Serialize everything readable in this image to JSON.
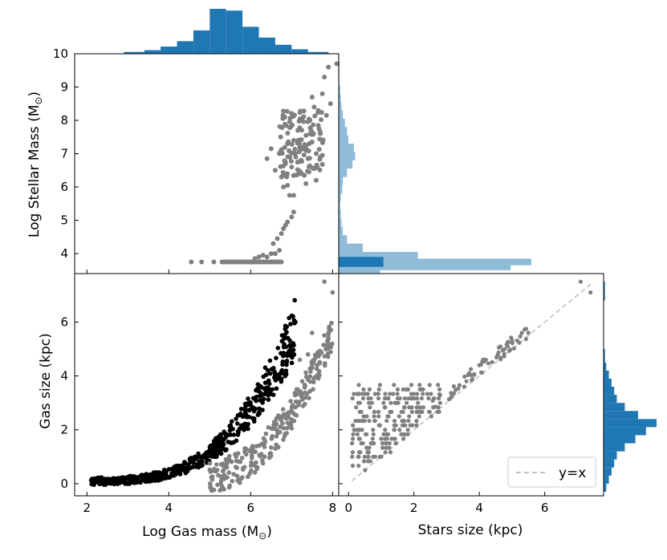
{
  "chart_data": [
    {
      "panel": "top-left",
      "type": "scatter",
      "xlabel": "",
      "ylabel": "Log Stellar Mass (M",
      "ylabel_sub": "⊙",
      "ylabel_close": ")",
      "xlim": [
        1.7,
        8.15
      ],
      "ylim": [
        3.4,
        10
      ],
      "yticks": [
        4,
        5,
        6,
        7,
        8,
        9,
        10
      ],
      "xticks": [
        2,
        4,
        6,
        8
      ],
      "show_x_ticklabels": false,
      "marker_color": "#808080",
      "series": [
        {
          "low_cluster_x": [
            4.55,
            4.8,
            5.1,
            5.35,
            5.5,
            5.6,
            5.7,
            5.8,
            5.9,
            6.0,
            6.1,
            6.2,
            6.3,
            6.4,
            6.5,
            6.6,
            6.7
          ],
          "low_cluster_y": 3.75,
          "rising_branch": [
            [
              6.1,
              3.85
            ],
            [
              6.2,
              3.9
            ],
            [
              6.3,
              3.95
            ],
            [
              6.4,
              3.9
            ],
            [
              6.5,
              4.0
            ],
            [
              6.6,
              4.0
            ],
            [
              6.7,
              4.1
            ],
            [
              6.55,
              4.3
            ],
            [
              6.65,
              4.45
            ],
            [
              6.75,
              4.6
            ],
            [
              6.8,
              4.75
            ],
            [
              6.85,
              4.85
            ],
            [
              6.9,
              4.95
            ],
            [
              7.0,
              5.1
            ],
            [
              7.05,
              5.25
            ]
          ],
          "upper_cluster": [
            [
              6.4,
              6.85
            ],
            [
              6.5,
              7.15
            ],
            [
              6.6,
              6.5
            ],
            [
              6.7,
              7.0
            ],
            [
              6.75,
              6.3
            ],
            [
              6.8,
              6.0
            ],
            [
              6.85,
              6.7
            ],
            [
              6.9,
              7.3
            ],
            [
              6.95,
              5.75
            ],
            [
              7.0,
              6.6
            ],
            [
              7.05,
              7.4
            ],
            [
              7.1,
              6.9
            ],
            [
              7.15,
              7.7
            ],
            [
              7.2,
              6.4
            ],
            [
              7.25,
              8.05
            ],
            [
              7.3,
              7.2
            ],
            [
              7.35,
              7.55
            ],
            [
              7.4,
              6.85
            ],
            [
              7.45,
              8.0
            ],
            [
              7.5,
              7.35
            ],
            [
              7.55,
              8.4
            ],
            [
              7.6,
              7.0
            ],
            [
              7.65,
              7.85
            ],
            [
              7.7,
              7.6
            ],
            [
              7.75,
              8.8
            ],
            [
              7.8,
              9.3
            ],
            [
              7.9,
              9.6
            ],
            [
              8.1,
              9.7
            ],
            [
              6.9,
              6.05
            ],
            [
              7.05,
              5.75
            ],
            [
              7.35,
              6.1
            ],
            [
              7.55,
              6.55
            ],
            [
              7.6,
              6.2
            ],
            [
              7.7,
              6.9
            ],
            [
              7.5,
              8.7
            ],
            [
              7.65,
              8.3
            ],
            [
              7.85,
              8.15
            ],
            [
              7.95,
              8.5
            ]
          ]
        }
      ]
    },
    {
      "panel": "top-right",
      "type": "bar",
      "orientation": "horizontal",
      "xlabel": "",
      "ylabel": "",
      "histogram_a_alpha": "light",
      "color": "#1f77b4",
      "bins_light": [
        [
          3.4,
          3.5,
          60
        ],
        [
          3.5,
          3.65,
          250
        ],
        [
          3.65,
          3.85,
          280
        ],
        [
          3.85,
          4.05,
          115
        ],
        [
          4.05,
          4.3,
          35
        ],
        [
          4.3,
          4.55,
          12
        ],
        [
          4.55,
          4.8,
          6
        ],
        [
          4.8,
          5.05,
          4
        ],
        [
          5.05,
          5.3,
          3
        ],
        [
          5.3,
          5.55,
          2
        ],
        [
          5.55,
          5.8,
          3
        ],
        [
          5.8,
          6.05,
          5
        ],
        [
          6.05,
          6.3,
          6
        ],
        [
          6.3,
          6.55,
          12
        ],
        [
          6.55,
          6.8,
          20
        ],
        [
          6.8,
          7.05,
          24
        ],
        [
          7.05,
          7.3,
          22
        ],
        [
          7.3,
          7.55,
          14
        ],
        [
          7.55,
          7.8,
          12
        ],
        [
          7.8,
          8.05,
          9
        ],
        [
          8.05,
          8.3,
          6
        ],
        [
          8.3,
          8.55,
          4
        ],
        [
          8.55,
          8.8,
          3
        ],
        [
          8.8,
          9.05,
          2
        ],
        [
          9.05,
          9.3,
          1
        ],
        [
          9.3,
          9.55,
          1
        ],
        [
          9.55,
          9.8,
          1
        ]
      ],
      "bins_dark": [
        [
          3.6,
          3.9,
          65
        ]
      ]
    },
    {
      "panel": "top",
      "type": "bar",
      "orientation": "vertical",
      "xlabel": "",
      "ylabel": "",
      "color": "#1f77b4",
      "bins": [
        [
          2.9,
          3.4,
          2
        ],
        [
          3.4,
          3.8,
          4
        ],
        [
          3.8,
          4.2,
          8
        ],
        [
          4.2,
          4.6,
          14
        ],
        [
          4.6,
          5.0,
          26
        ],
        [
          5.0,
          5.4,
          50
        ],
        [
          5.4,
          5.8,
          48
        ],
        [
          5.8,
          6.2,
          30
        ],
        [
          6.2,
          6.6,
          18
        ],
        [
          6.6,
          7.0,
          10
        ],
        [
          7.0,
          7.4,
          5
        ],
        [
          7.4,
          7.9,
          2
        ]
      ]
    },
    {
      "panel": "bottom-left",
      "type": "scatter",
      "xlabel": "Log Gas mass (M",
      "xlabel_sub": "⊙",
      "xlabel_close": ")",
      "ylabel": "Gas size (kpc)",
      "xlim": [
        1.7,
        8.15
      ],
      "ylim": [
        -0.45,
        7.8
      ],
      "xticks": [
        2,
        4,
        6,
        8
      ],
      "yticks": [
        0,
        2,
        4,
        6
      ],
      "series": [
        {
          "name": "",
          "color": "#000000",
          "note": "dense black relation ranging from (2.1, 0.1) to (7.0, 5.5)"
        },
        {
          "name": "",
          "color": "#808080",
          "note": "grey relation ranging from (5.0, 0.3) to (8.0, 7.5)"
        }
      ]
    },
    {
      "panel": "bottom-right",
      "type": "scatter",
      "xlabel": "Stars size (kpc)",
      "ylabel": "",
      "xlim": [
        -0.3,
        7.8
      ],
      "ylim": [
        -0.45,
        7.8
      ],
      "xticks": [
        0,
        2,
        4,
        6
      ],
      "yticks": [
        0,
        2,
        4,
        6
      ],
      "show_y_ticklabels": false,
      "marker_color": "#808080",
      "line": {
        "label": "y=x",
        "style": "dashed",
        "color": "#c0c0c0"
      },
      "legend": "bottom-right"
    },
    {
      "panel": "right",
      "type": "bar",
      "orientation": "horizontal",
      "xlabel": "",
      "ylabel": "",
      "color": "#1f77b4",
      "bins": [
        [
          -0.3,
          0.0,
          1
        ],
        [
          0.0,
          0.3,
          2
        ],
        [
          0.3,
          0.6,
          3
        ],
        [
          0.6,
          0.9,
          4
        ],
        [
          0.9,
          1.2,
          5
        ],
        [
          1.2,
          1.5,
          8
        ],
        [
          1.5,
          1.8,
          12
        ],
        [
          1.8,
          2.1,
          16
        ],
        [
          2.1,
          2.4,
          20
        ],
        [
          2.4,
          2.7,
          13
        ],
        [
          2.7,
          3.0,
          8
        ],
        [
          3.0,
          3.3,
          5
        ],
        [
          3.3,
          3.6,
          4
        ],
        [
          3.6,
          3.9,
          3
        ],
        [
          3.9,
          4.2,
          2
        ],
        [
          4.2,
          4.5,
          1
        ],
        [
          4.5,
          5.0,
          0.5
        ],
        [
          6.8,
          7.5,
          0.5
        ]
      ]
    }
  ]
}
